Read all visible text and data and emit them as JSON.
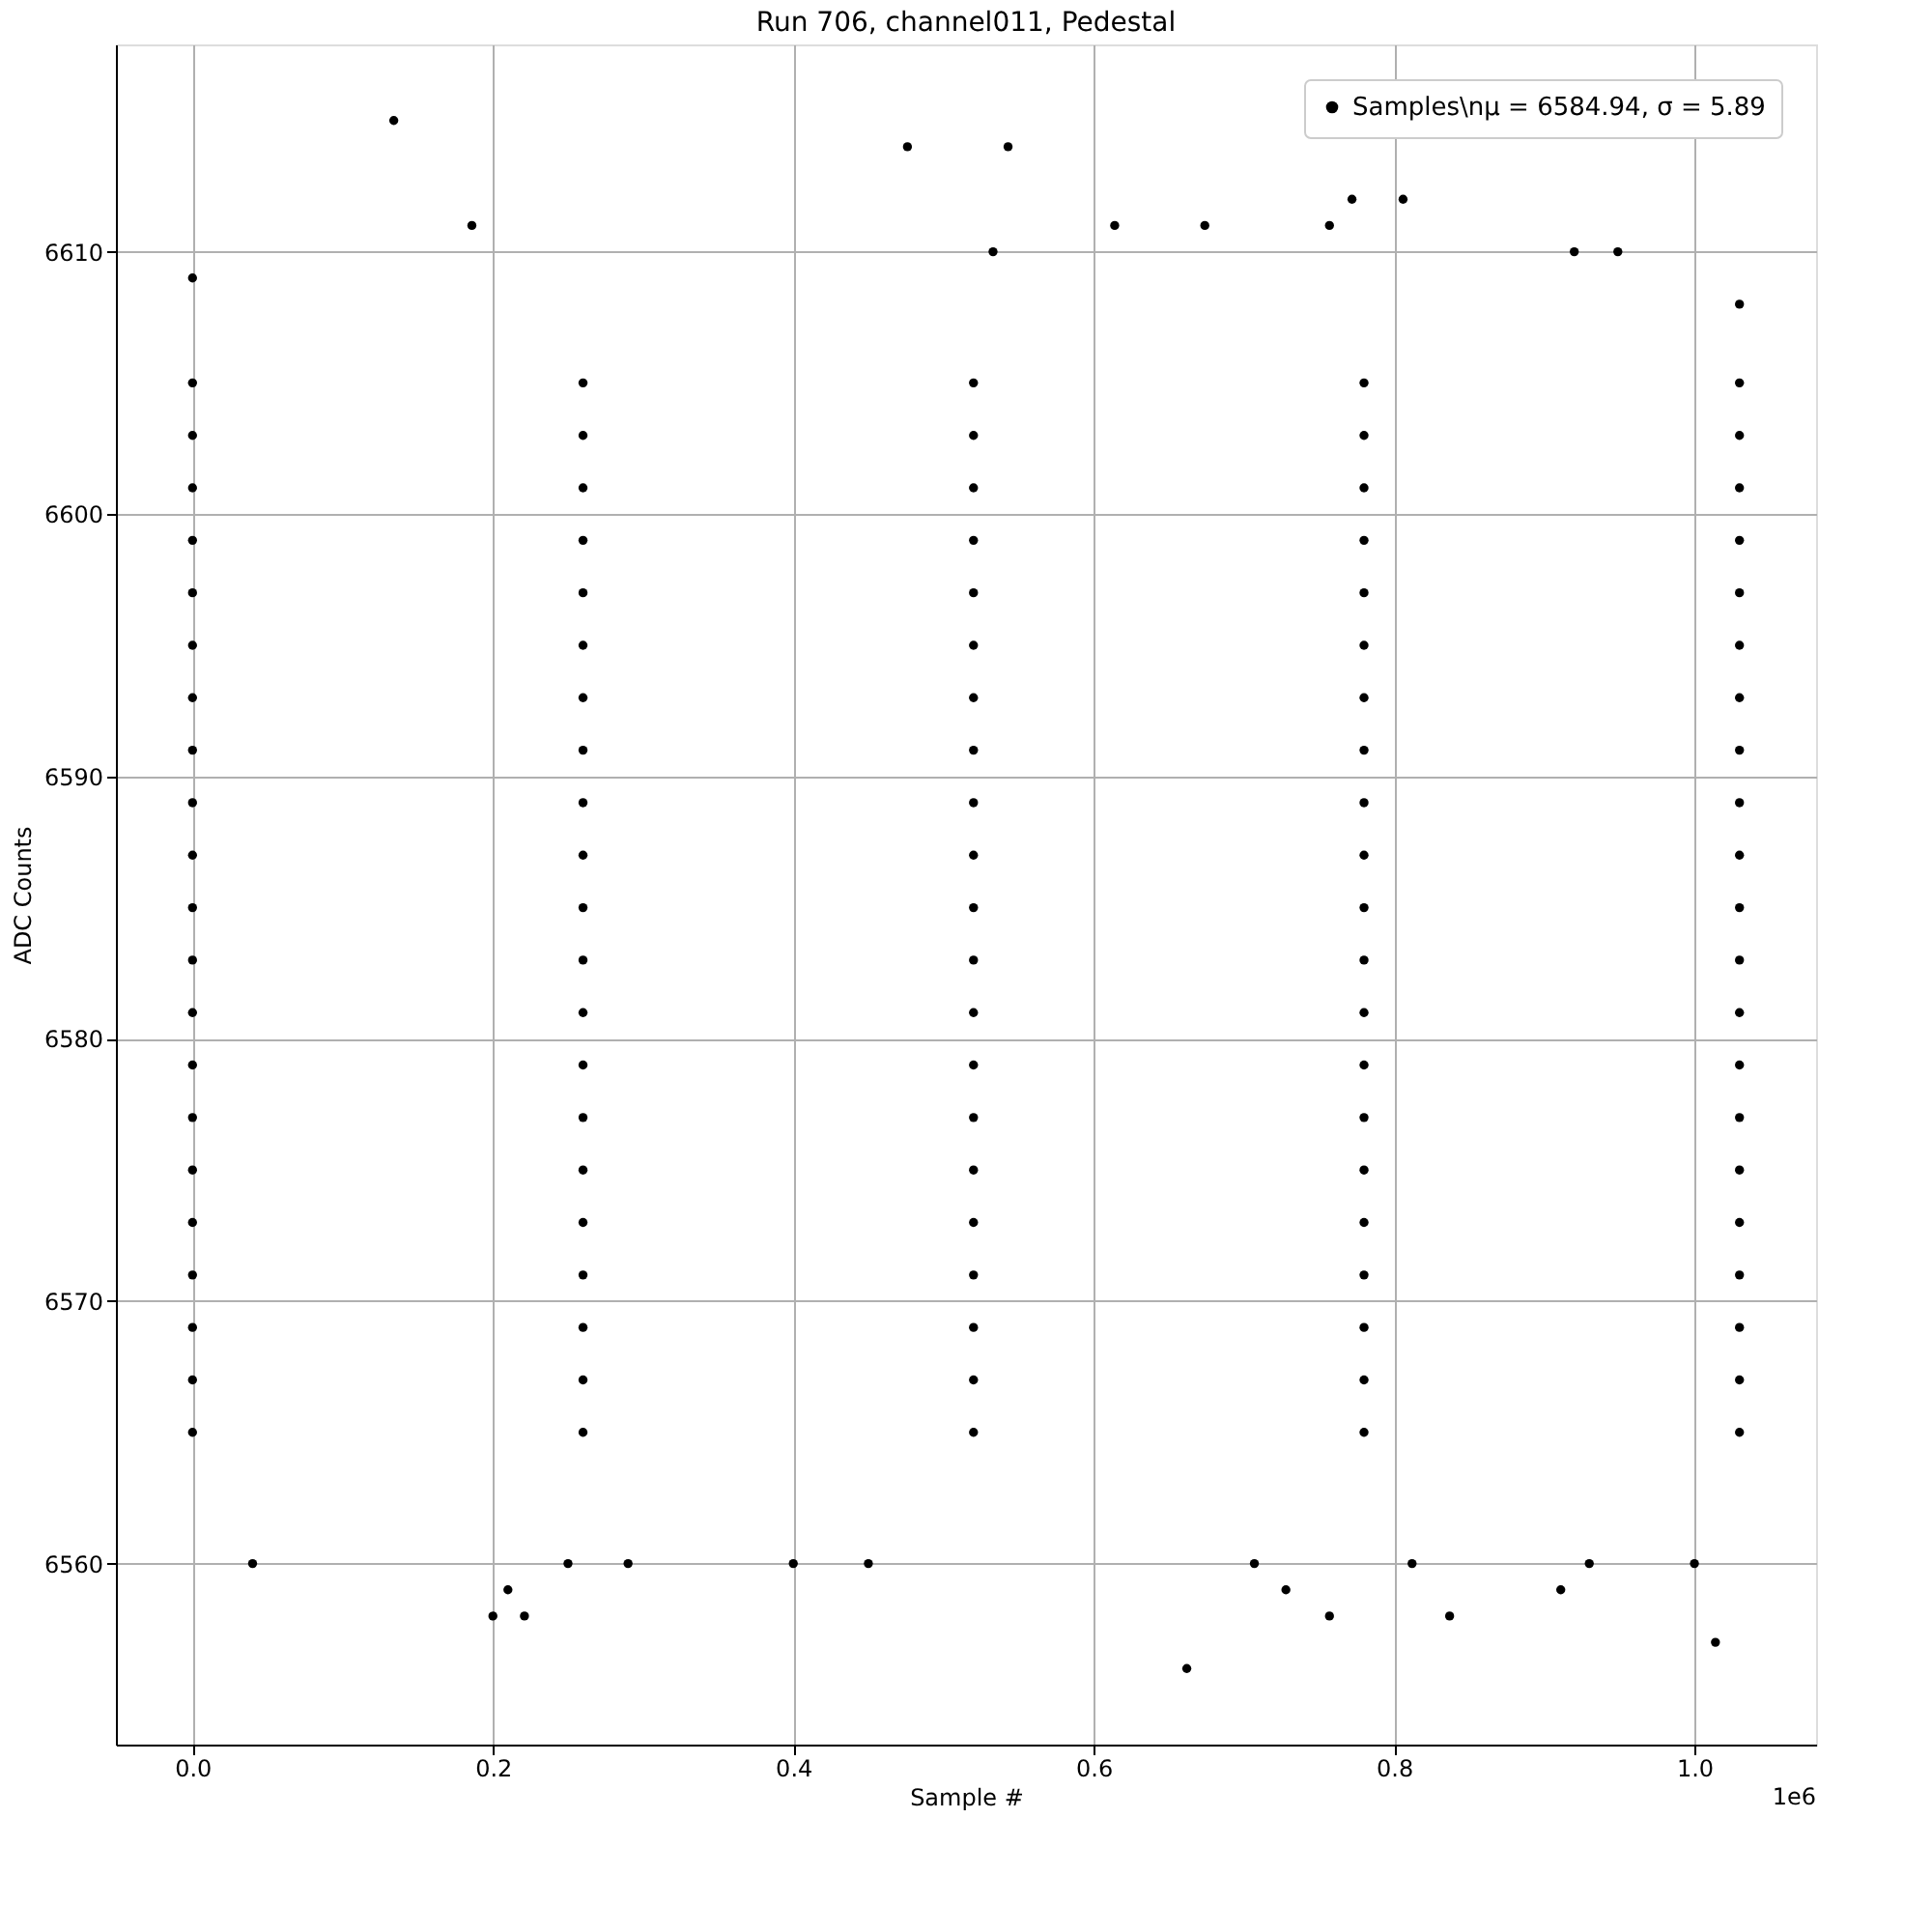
{
  "chart_data": {
    "type": "scatter",
    "title": "Run 706, channel011, Pedestal",
    "xlabel": "Sample #",
    "ylabel": "ADC Counts",
    "annotations": [
      "1e6"
    ],
    "xlim": [
      -0.051,
      1.081
    ],
    "ylim": [
      6553.1,
      6617.9
    ],
    "xticks": [
      {
        "value": 0,
        "label": "0.0"
      },
      {
        "value": 0.2,
        "label": "0.2"
      },
      {
        "value": 0.4,
        "label": "0.4"
      },
      {
        "value": 0.6,
        "label": "0.6"
      },
      {
        "value": 0.8,
        "label": "0.8"
      },
      {
        "value": 1,
        "label": "1.0"
      }
    ],
    "yticks": [
      6560,
      6570,
      6580,
      6590,
      6600,
      6610
    ],
    "grid": true,
    "legend": "top right",
    "marker": "circle",
    "series": [
      {
        "name": "Samples\\nμ = 6584.94, σ = 5.89",
        "color": "#000000",
        "x": [
          0,
          0,
          0,
          0,
          0,
          0,
          0,
          0,
          0,
          0,
          0,
          0,
          0,
          0,
          0,
          0,
          0,
          0,
          0,
          0,
          0,
          0.26,
          0.26,
          0.26,
          0.26,
          0.26,
          0.26,
          0.26,
          0.26,
          0.26,
          0.26,
          0.26,
          0.26,
          0.26,
          0.26,
          0.26,
          0.26,
          0.26,
          0.26,
          0.26,
          0.26,
          0.26,
          0.52,
          0.52,
          0.52,
          0.52,
          0.52,
          0.52,
          0.52,
          0.52,
          0.52,
          0.52,
          0.52,
          0.52,
          0.52,
          0.52,
          0.52,
          0.52,
          0.52,
          0.52,
          0.52,
          0.52,
          0.52,
          0.78,
          0.78,
          0.78,
          0.78,
          0.78,
          0.78,
          0.78,
          0.78,
          0.78,
          0.78,
          0.78,
          0.78,
          0.78,
          0.78,
          0.78,
          0.78,
          0.78,
          0.78,
          0.78,
          0.78,
          0.78,
          1.03,
          1.03,
          1.03,
          1.03,
          1.03,
          1.03,
          1.03,
          1.03,
          1.03,
          1.03,
          1.03,
          1.03,
          1.03,
          1.03,
          1.03,
          1.03,
          1.03,
          1.03,
          1.03,
          1.03,
          1.03,
          0.134,
          0.186,
          0.476,
          0.543,
          0.533,
          0.614,
          0.674,
          0.757,
          0.772,
          0.806,
          0.92,
          0.949,
          0.0,
          0.04,
          0.2,
          0.221,
          0.21,
          0.25,
          0.29,
          0.4,
          0.45,
          0.662,
          0.707,
          0.728,
          0.757,
          0.812,
          0.837,
          0.911,
          0.93,
          1.0,
          1.014,
          1.03
        ],
        "values": [
          6565,
          6567,
          6569,
          6571,
          6573,
          6575,
          6577,
          6579,
          6581,
          6583,
          6585,
          6587,
          6589,
          6591,
          6593,
          6595,
          6597,
          6599,
          6601,
          6603,
          6605,
          6565,
          6567,
          6569,
          6571,
          6573,
          6575,
          6577,
          6579,
          6581,
          6583,
          6585,
          6587,
          6589,
          6591,
          6593,
          6595,
          6597,
          6599,
          6601,
          6603,
          6605,
          6565,
          6567,
          6569,
          6571,
          6573,
          6575,
          6577,
          6579,
          6581,
          6583,
          6585,
          6587,
          6589,
          6591,
          6593,
          6595,
          6597,
          6599,
          6601,
          6603,
          6605,
          6565,
          6567,
          6569,
          6571,
          6573,
          6575,
          6577,
          6579,
          6581,
          6583,
          6585,
          6587,
          6589,
          6591,
          6593,
          6595,
          6597,
          6599,
          6601,
          6603,
          6605,
          6565,
          6567,
          6569,
          6571,
          6573,
          6575,
          6577,
          6579,
          6581,
          6583,
          6585,
          6587,
          6589,
          6591,
          6593,
          6595,
          6597,
          6599,
          6601,
          6603,
          6605,
          6615,
          6611,
          6614,
          6614,
          6610,
          6611,
          6611,
          6611,
          6612,
          6612,
          6610,
          6610,
          6609,
          6560,
          6558,
          6558,
          6559,
          6560,
          6560,
          6560,
          6560,
          6556,
          6560,
          6559,
          6558,
          6560,
          6558,
          6559,
          6560,
          6560,
          6557,
          6608
        ]
      }
    ]
  }
}
